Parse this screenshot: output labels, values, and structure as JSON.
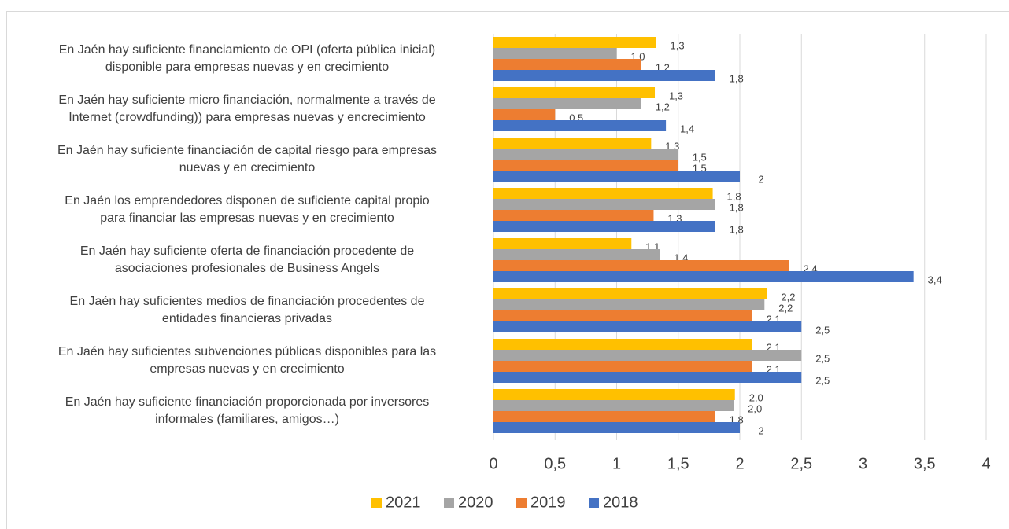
{
  "chart_data": {
    "type": "bar",
    "orientation": "horizontal",
    "categories": [
      "En Jaén hay suficiente financiamiento de OPI (oferta pública inicial)\ndisponible para empresas nuevas y en crecimiento",
      "En Jaén hay suficiente micro financiación, normalmente a través de\nInternet (crowdfunding)) para empresas nuevas y encrecimiento",
      "En Jaén hay suficiente financiación de capital riesgo para empresas\nnuevas y en crecimiento",
      "En Jaén los emprendedores disponen de suficiente capital propio\npara financiar las empresas nuevas y en crecimiento",
      "En Jaén hay suficiente oferta de financiación procedente de\nasociaciones profesionales de Business Angels",
      "En Jaén hay suficientes medios de financiación procedentes de\nentidades financieras privadas",
      "En Jaén hay suficientes subvenciones públicas disponibles para las\nempresas nuevas y en crecimiento",
      "En Jaén hay suficiente financiación proporcionada por inversores\ninformales (familiares, amigos…)"
    ],
    "series": [
      {
        "name": "2021",
        "color": "#FFC000",
        "values": [
          1.32,
          1.31,
          1.28,
          1.78,
          1.12,
          2.22,
          2.1,
          1.96
        ],
        "value_labels": [
          "1,3",
          "1,3",
          "1,3",
          "1,8",
          "1,1",
          "2,2",
          "2,1",
          "2,0"
        ]
      },
      {
        "name": "2020",
        "color": "#A5A5A5",
        "values": [
          1.0,
          1.2,
          1.5,
          1.8,
          1.35,
          2.2,
          2.5,
          1.95
        ],
        "value_labels": [
          "1,0",
          "1,2",
          "1,5",
          "1,8",
          "1,4",
          "2,2",
          "2,5",
          "2,0"
        ]
      },
      {
        "name": "2019",
        "color": "#ED7D31",
        "values": [
          1.2,
          0.5,
          1.5,
          1.3,
          2.4,
          2.1,
          2.1,
          1.8
        ],
        "value_labels": [
          "1,2",
          "0,5",
          "1,5",
          "1,3",
          "2,4",
          "2,1",
          "2,1",
          "1,8"
        ]
      },
      {
        "name": "2018",
        "color": "#4472C4",
        "values": [
          1.8,
          1.4,
          2,
          1.8,
          3.41,
          2.5,
          2.5,
          2
        ],
        "value_labels": [
          "1,8",
          "1,4",
          "2",
          "1,8",
          "3,4",
          "2,5",
          "2,5",
          "2"
        ]
      }
    ],
    "xlim": [
      0,
      4
    ],
    "xticks": [
      0,
      {
        "value": 0.5,
        "label": "0,5"
      },
      1,
      {
        "value": 1.5,
        "label": "1,5"
      },
      2,
      {
        "value": 2.5,
        "label": "2,5"
      },
      3,
      {
        "value": 3.5,
        "label": "3,5"
      },
      4
    ],
    "grid": true,
    "legend": "bottom"
  }
}
